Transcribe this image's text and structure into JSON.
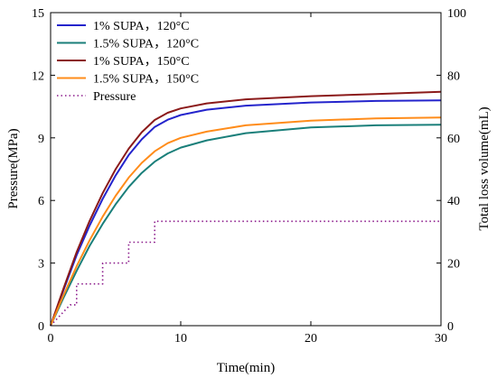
{
  "chart_data": {
    "type": "line",
    "xlabel": "Time(min)",
    "ylabel_left": "Pressure(MPa)",
    "ylabel_right": "Total loss volume(mL)",
    "xlim": [
      0,
      30
    ],
    "ylim_left": [
      0,
      15
    ],
    "ylim_right": [
      0,
      100
    ],
    "x_ticks": [
      0,
      10,
      20,
      30
    ],
    "y_left_ticks": [
      0,
      3,
      6,
      9,
      12,
      15
    ],
    "y_right_ticks": [
      0,
      20,
      40,
      60,
      80,
      100
    ],
    "grid": false,
    "legend_position": "top-left",
    "series": [
      {
        "name": "1% SUPA，120°C",
        "axis": "right",
        "style": "solid",
        "color": "#2424cc",
        "x": [
          0,
          1,
          2,
          3,
          4,
          5,
          6,
          7,
          8,
          9,
          10,
          12,
          15,
          20,
          25,
          30
        ],
        "y": [
          0,
          11.5,
          22.5,
          32,
          40.5,
          48,
          54.5,
          59.5,
          63.5,
          65.8,
          67.3,
          69,
          70.3,
          71.3,
          71.8,
          72
        ]
      },
      {
        "name": "1.5% SUPA，120°C",
        "axis": "right",
        "style": "solid",
        "color": "#1a7f7a",
        "x": [
          0,
          1,
          2,
          3,
          4,
          5,
          6,
          7,
          8,
          9,
          10,
          12,
          15,
          20,
          25,
          30
        ],
        "y": [
          0,
          9,
          17.5,
          25.5,
          32.5,
          38.8,
          44.3,
          48.8,
          52.4,
          55,
          56.9,
          59.2,
          61.5,
          63.3,
          64,
          64.2
        ]
      },
      {
        "name": "1% SUPA，150°C",
        "axis": "right",
        "style": "solid",
        "color": "#8b1a1a",
        "x": [
          0,
          1,
          2,
          3,
          4,
          5,
          6,
          7,
          8,
          9,
          10,
          12,
          15,
          20,
          25,
          30
        ],
        "y": [
          0,
          12,
          23.5,
          33.5,
          42.3,
          50,
          56.5,
          61.8,
          65.7,
          68,
          69.4,
          71,
          72.3,
          73.3,
          74,
          74.7
        ]
      },
      {
        "name": "1.5% SUPA，150°C",
        "axis": "right",
        "style": "solid",
        "color": "#ff8c1a",
        "x": [
          0,
          1,
          2,
          3,
          4,
          5,
          6,
          7,
          8,
          9,
          10,
          12,
          15,
          20,
          25,
          30
        ],
        "y": [
          0,
          9.8,
          19,
          27.3,
          34.8,
          41.5,
          47.3,
          52,
          55.7,
          58.3,
          60,
          62,
          64,
          65.5,
          66.2,
          66.5
        ]
      },
      {
        "name": "Pressure",
        "axis": "left",
        "style": "dotted",
        "color": "#8b1a8b",
        "x": [
          0,
          1.5,
          1.5,
          2,
          2,
          4,
          4,
          6,
          6,
          8,
          8,
          30
        ],
        "y": [
          0,
          1,
          1,
          1,
          2,
          2,
          3,
          3,
          4,
          4,
          5,
          5
        ]
      }
    ]
  }
}
